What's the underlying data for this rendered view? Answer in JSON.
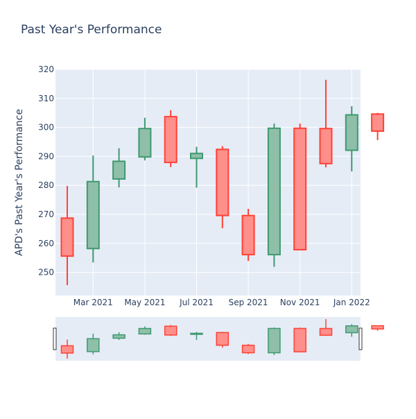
{
  "chart_data": {
    "type": "candlestick",
    "title": "Past Year's Performance",
    "ylabel": "APD's Past Year's Performance",
    "xlabel": "",
    "ylim": [
      242,
      320
    ],
    "y_ticks": [
      250,
      260,
      270,
      280,
      290,
      300,
      310,
      320
    ],
    "x_ticks": [
      "Mar 2021",
      "May 2021",
      "Jul 2021",
      "Sep 2021",
      "Nov 2021",
      "Jan 2022"
    ],
    "grid": true,
    "colors": {
      "increasing": "#3d9970",
      "decreasing": "#ff4136",
      "increasing_fill": "#8fbfa8",
      "decreasing_fill": "#ff8f8a",
      "plot_bg": "#e5ecf6",
      "text": "#2a3f5f"
    },
    "categories": [
      "Jan 2021",
      "Feb 2021",
      "Mar 2021",
      "Apr 2021",
      "May 2021",
      "Jun 2021",
      "Jul 2021",
      "Aug 2021",
      "Sep 2021",
      "Oct 2021",
      "Nov 2021",
      "Dec 2021",
      "Jan 2022"
    ],
    "open": [
      268.7,
      258.2,
      282.2,
      289.8,
      303.7,
      289.3,
      292.4,
      269.6,
      256.1,
      299.7,
      299.6,
      292.1,
      304.6
    ],
    "high": [
      279.8,
      290.3,
      292.8,
      303.3,
      305.9,
      293.3,
      293.5,
      271.9,
      301.3,
      301.3,
      316.4,
      307.3,
      305.0
    ],
    "low": [
      245.6,
      253.4,
      279.3,
      288.6,
      286.3,
      279.2,
      265.2,
      253.9,
      251.9,
      257.8,
      286.2,
      284.8,
      295.6
    ],
    "close": [
      255.6,
      281.3,
      288.3,
      299.6,
      287.9,
      291.0,
      269.6,
      256.1,
      299.7,
      257.8,
      287.5,
      304.3,
      298.7
    ],
    "has_range_slider": true
  }
}
